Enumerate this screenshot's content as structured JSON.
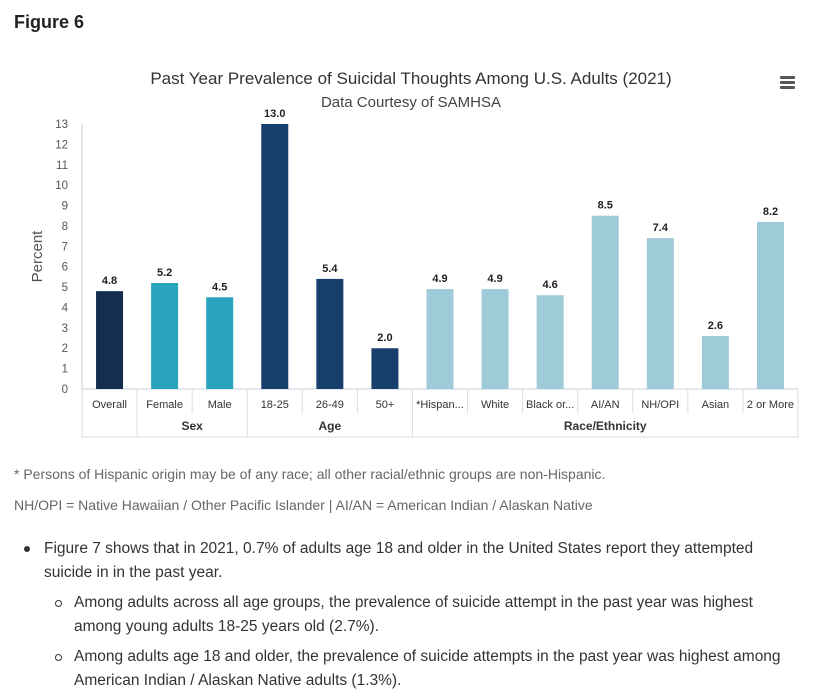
{
  "page": {
    "heading": "Figure 6",
    "footnote": "* Persons of Hispanic origin may be of any race; all other racial/ethnic groups are non-Hispanic.",
    "abbreviations": "NH/OPI = Native Hawaiian / Other Pacific Islander | AI/AN = American Indian / Alaskan Native",
    "bullets": [
      {
        "text": "Figure 7 shows that in 2021, 0.7% of adults age 18 and older in the United States report they attempted suicide in in the past year."
      },
      {
        "text": "Among adults across all age groups, the prevalence of suicide attempt in the past year was highest among young adults 18-25 years old (2.7%)."
      },
      {
        "text": "Among adults age 18 and older, the prevalence of suicide attempts in the past year was highest among American Indian / Alaskan Native adults (1.3%)."
      }
    ],
    "menu_icon": "hamburger-menu-icon"
  },
  "chart_data": {
    "type": "bar",
    "title": "Past Year Prevalence of Suicidal Thoughts Among U.S. Adults (2021)",
    "subtitle": "Data Courtesy of SAMHSA",
    "xlabel": "",
    "ylabel": "Percent",
    "ylim": [
      0,
      13
    ],
    "yticks": [
      0,
      1,
      2,
      3,
      4,
      5,
      6,
      7,
      8,
      9,
      10,
      11,
      12,
      13
    ],
    "grid": false,
    "categories": [
      "Overall",
      "Female",
      "Male",
      "18-25",
      "26-49",
      "50+",
      "*Hispan...",
      "White",
      "Black or...",
      "AI/AN",
      "NH/OPI",
      "Asian",
      "2 or More"
    ],
    "values": [
      4.8,
      5.2,
      4.5,
      13.0,
      5.4,
      2.0,
      4.9,
      4.9,
      4.6,
      8.5,
      7.4,
      2.6,
      8.2
    ],
    "data_labels": [
      "4.8",
      "5.2",
      "4.5",
      "13.0",
      "5.4",
      "2.0",
      "4.9",
      "4.9",
      "4.6",
      "8.5",
      "7.4",
      "2.6",
      "8.2"
    ],
    "groups": [
      {
        "label": "",
        "span": 1
      },
      {
        "label": "Sex",
        "span": 2
      },
      {
        "label": "Age",
        "span": 3
      },
      {
        "label": "Race/Ethnicity",
        "span": 7
      }
    ],
    "colors": [
      "#132e4f",
      "#2aa3bd",
      "#2aa3bd",
      "#173f6c",
      "#173f6c",
      "#173f6c",
      "#9fcad8",
      "#9fcad8",
      "#9fcad8",
      "#9fcad8",
      "#9fcad8",
      "#9fcad8",
      "#9fcad8"
    ]
  }
}
